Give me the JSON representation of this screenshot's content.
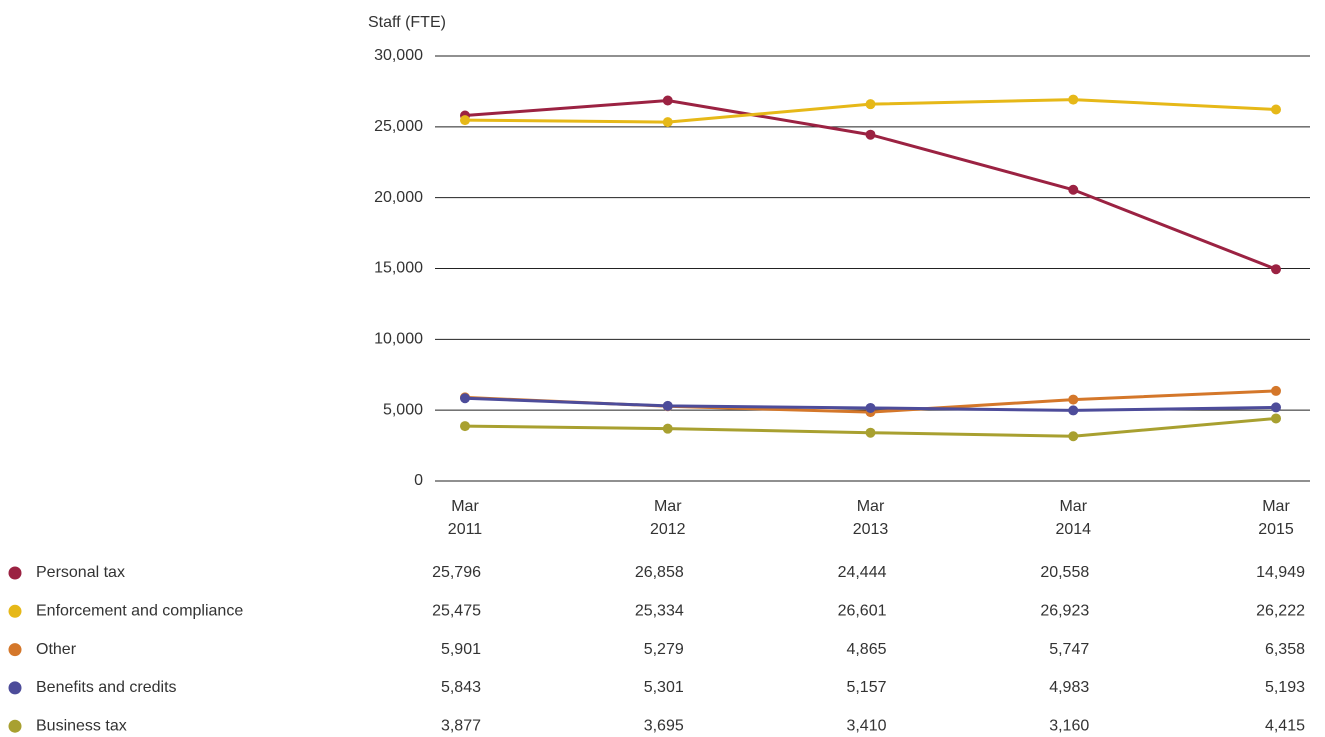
{
  "chart_data": {
    "type": "line",
    "y_label": "Staff (FTE)",
    "categories": [
      "Mar 2011",
      "Mar 2012",
      "Mar 2013",
      "Mar 2014",
      "Mar 2015"
    ],
    "ylim": [
      0,
      30000
    ],
    "yticks": [
      0,
      {
        "value": 5000,
        "label": "5,000"
      },
      {
        "value": 10000,
        "label": "10,000"
      },
      {
        "value": 15000,
        "label": "15,000"
      },
      {
        "value": 20000,
        "label": "20,000"
      },
      {
        "value": 25000,
        "label": "25,000"
      },
      {
        "value": 30000,
        "label": "30,000"
      }
    ],
    "grid": true,
    "series": [
      {
        "name": "Personal tax",
        "color": "#9b2242",
        "values": [
          25796,
          26858,
          24444,
          20558,
          14949
        ],
        "value_labels": [
          "25,796",
          "26,858",
          "24,444",
          "20,558",
          "14,949"
        ]
      },
      {
        "name": "Enforcement and compliance",
        "color": "#e6b818",
        "values": [
          25475,
          25334,
          26601,
          26923,
          26222
        ],
        "value_labels": [
          "25,475",
          "25,334",
          "26,601",
          "26,923",
          "26,222"
        ]
      },
      {
        "name": "Other",
        "color": "#d4772a",
        "values": [
          5901,
          5279,
          4865,
          5747,
          6358
        ],
        "value_labels": [
          "5,901",
          "5,279",
          "4,865",
          "5,747",
          "6,358"
        ]
      },
      {
        "name": "Benefits and credits",
        "color": "#4d4c9a",
        "values": [
          5843,
          5301,
          5157,
          4983,
          5193
        ],
        "value_labels": [
          "5,843",
          "5,301",
          "5,157",
          "4,983",
          "5,193"
        ]
      },
      {
        "name": "Business tax",
        "color": "#a8a030",
        "values": [
          3877,
          3695,
          3410,
          3160,
          4415
        ],
        "value_labels": [
          "3,877",
          "3,695",
          "3,410",
          "3,160",
          "4,415"
        ]
      }
    ]
  }
}
